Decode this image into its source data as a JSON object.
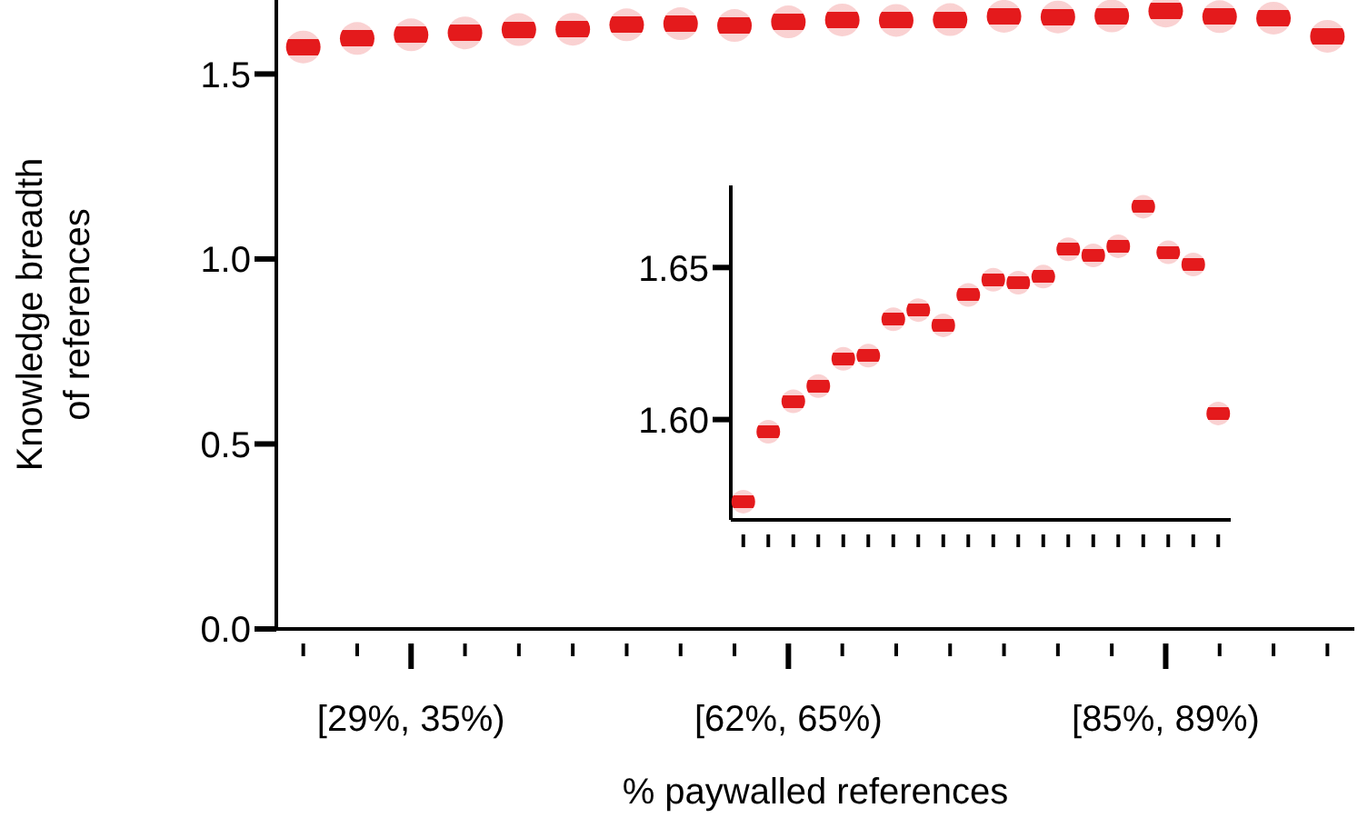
{
  "chart_data": [
    {
      "type": "scatter",
      "xlabel": "% paywalled references",
      "ylabel": "Knowledge breadth\nof references",
      "categories": [
        null,
        null,
        "[29%, 35%)",
        null,
        null,
        null,
        null,
        null,
        null,
        "[62%, 65%)",
        null,
        null,
        null,
        null,
        null,
        null,
        "[85%, 89%)",
        null,
        null,
        null
      ],
      "series": [
        {
          "color": "#e41a1c",
          "values": [
            1.573,
            1.596,
            1.606,
            1.611,
            1.62,
            1.621,
            1.633,
            1.636,
            1.631,
            1.641,
            1.646,
            1.645,
            1.647,
            1.656,
            1.654,
            1.657,
            1.67,
            1.655,
            1.651,
            1.602
          ]
        }
      ],
      "ylim": [
        0,
        1.7
      ],
      "yticks": [
        {
          "value": 0,
          "label": "0.0"
        },
        0.5,
        {
          "value": 1,
          "label": "1.0"
        },
        1.5
      ],
      "grid": false,
      "legend": false
    },
    {
      "type": "scatter",
      "categories": [
        null,
        null,
        null,
        null,
        null,
        null,
        null,
        null,
        null,
        null,
        null,
        null,
        null,
        null,
        null,
        null,
        null,
        null,
        null,
        null
      ],
      "series": [
        {
          "color": "#e41a1c",
          "values": [
            1.573,
            1.596,
            1.606,
            1.611,
            1.62,
            1.621,
            1.633,
            1.636,
            1.631,
            1.641,
            1.646,
            1.645,
            1.647,
            1.656,
            1.654,
            1.657,
            1.67,
            1.655,
            1.651,
            1.602
          ]
        }
      ],
      "ylim": [
        1.567,
        1.677
      ],
      "yticks": [
        {
          "value": 1.6,
          "label": "1.60"
        },
        {
          "value": 1.65,
          "label": "1.65"
        }
      ],
      "tick_labels": "y",
      "grid": false,
      "legend": false
    }
  ]
}
